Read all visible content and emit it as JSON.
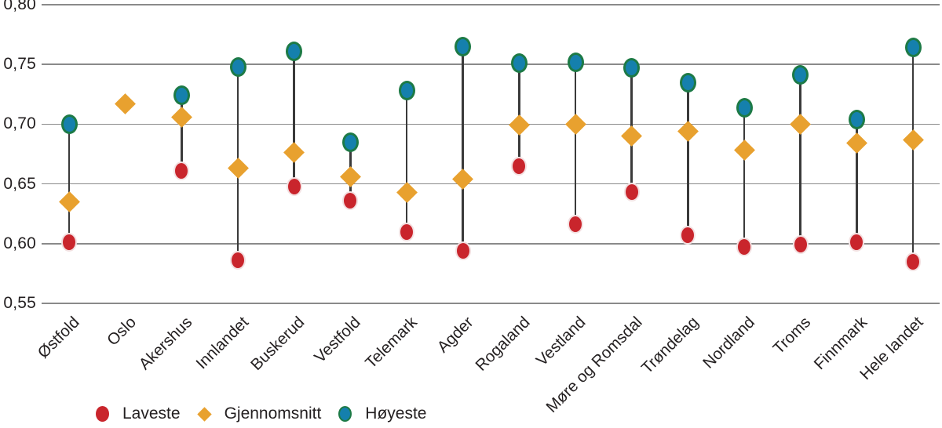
{
  "chart_data": {
    "type": "scatter",
    "subtype": "dumbbell-range",
    "title": "",
    "xlabel": "",
    "ylabel": "",
    "categories": [
      "Østfold",
      "Oslo",
      "Akershus",
      "Innlandet",
      "Buskerud",
      "Vestfold",
      "Telemark",
      "Agder",
      "Rogaland",
      "Vestland",
      "Møre og Romsdal",
      "Trøndelag",
      "Nordland",
      "Troms",
      "Finnmark",
      "Hele landet"
    ],
    "series": [
      {
        "name": "Laveste",
        "marker": "circle",
        "color": "#c9252c",
        "values": [
          0.601,
          null,
          0.661,
          0.586,
          0.648,
          0.636,
          0.61,
          0.594,
          0.665,
          0.616,
          0.643,
          0.607,
          0.597,
          0.599,
          0.601,
          0.585
        ]
      },
      {
        "name": "Gjennomsnitt",
        "marker": "diamond",
        "color": "#e8a12f",
        "values": [
          0.635,
          0.717,
          0.706,
          0.663,
          0.676,
          0.656,
          0.643,
          0.654,
          0.699,
          0.7,
          0.69,
          0.694,
          0.678,
          0.7,
          0.684,
          0.687
        ]
      },
      {
        "name": "Høyeste",
        "marker": "circle",
        "color": "#1580ad",
        "marker_border_color": "#1d7a46",
        "values": [
          0.7,
          null,
          0.724,
          0.748,
          0.761,
          0.685,
          0.728,
          0.765,
          0.751,
          0.752,
          0.747,
          0.735,
          0.714,
          0.741,
          0.704,
          0.764
        ]
      }
    ],
    "ylim": [
      0.55,
      0.8
    ],
    "ytick_step": 0.05,
    "yticks": [
      {
        "label": "0,80",
        "value": 0.8
      },
      {
        "label": "0,75",
        "value": 0.75
      },
      {
        "label": "0,70",
        "value": 0.7
      },
      {
        "label": "0,65",
        "value": 0.65
      },
      {
        "label": "0,60",
        "value": 0.6
      },
      {
        "label": "0,55",
        "value": 0.55
      }
    ],
    "grid": "horizontal",
    "gridline_color": "#8a8a8a",
    "connector_color": "#3a3a3a",
    "legend_position": "bottom-left",
    "legend_items": [
      "Laveste",
      "Gjennomsnitt",
      "Høyeste"
    ]
  }
}
